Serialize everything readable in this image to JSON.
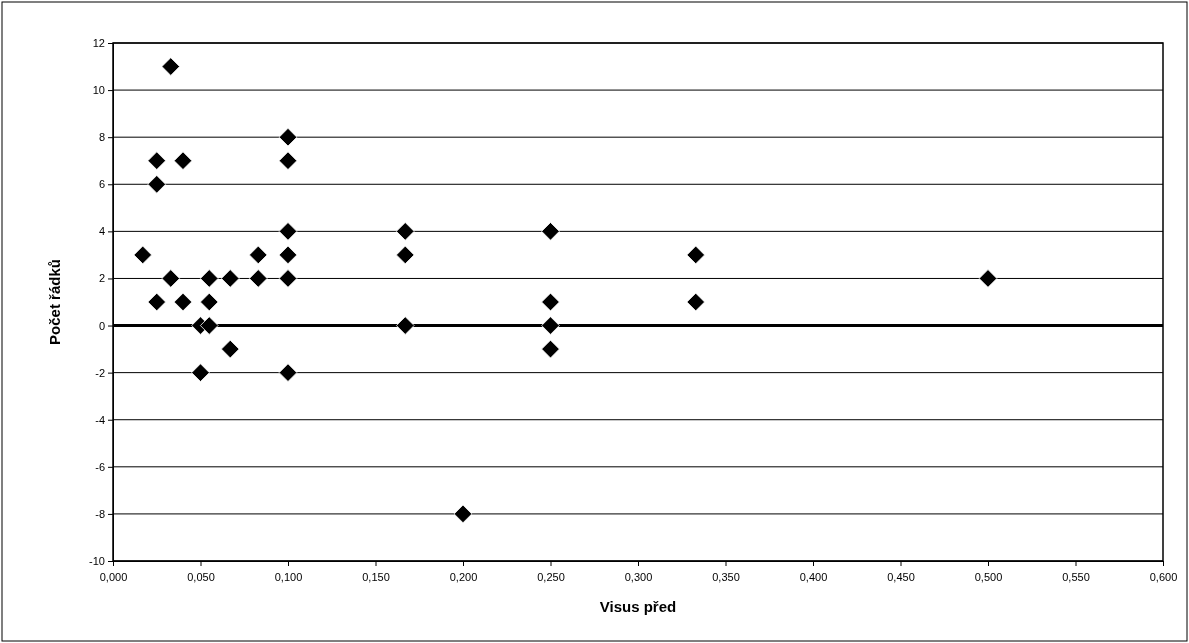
{
  "chart_data": {
    "type": "scatter",
    "xlabel": "Visus před",
    "ylabel": "Počet řádků",
    "x": [
      0.017,
      0.025,
      0.025,
      0.025,
      0.033,
      0.033,
      0.04,
      0.04,
      0.05,
      0.05,
      0.055,
      0.055,
      0.055,
      0.067,
      0.067,
      0.083,
      0.083,
      0.1,
      0.1,
      0.1,
      0.1,
      0.1,
      0.1,
      0.167,
      0.167,
      0.167,
      0.2,
      0.25,
      0.25,
      0.25,
      0.25,
      0.333,
      0.333,
      0.5
    ],
    "values": [
      3,
      7,
      6,
      1,
      11,
      2,
      7,
      1,
      0,
      -2,
      2,
      1,
      0,
      2,
      -1,
      3,
      2,
      8,
      7,
      4,
      3,
      2,
      -2,
      4,
      3,
      0,
      -8,
      4,
      1,
      0,
      -1,
      3,
      1,
      2
    ],
    "color": "#000000",
    "marker": "diamond",
    "xlim": [
      0,
      0.6
    ],
    "ylim": [
      -10,
      12
    ],
    "xticks": [
      {
        "value": 0,
        "label": "0,000"
      },
      {
        "value": 0.05,
        "label": "0,050"
      },
      {
        "value": 0.1,
        "label": "0,100"
      },
      {
        "value": 0.15,
        "label": "0,150"
      },
      {
        "value": 0.2,
        "label": "0,200"
      },
      {
        "value": 0.25,
        "label": "0,250"
      },
      {
        "value": 0.3,
        "label": "0,300"
      },
      {
        "value": 0.35,
        "label": "0,350"
      },
      {
        "value": 0.4,
        "label": "0,400"
      },
      {
        "value": 0.45,
        "label": "0,450"
      },
      {
        "value": 0.5,
        "label": "0,500"
      },
      {
        "value": 0.55,
        "label": "0,550"
      },
      {
        "value": 0.6,
        "label": "0,600"
      }
    ],
    "yticks": [
      -10,
      -8,
      -6,
      -4,
      -2,
      0,
      2,
      4,
      6,
      8,
      10,
      12
    ],
    "grid": "y",
    "ref_lines": [
      {
        "axis": "y",
        "value": 0,
        "color": "#000000"
      }
    ]
  }
}
